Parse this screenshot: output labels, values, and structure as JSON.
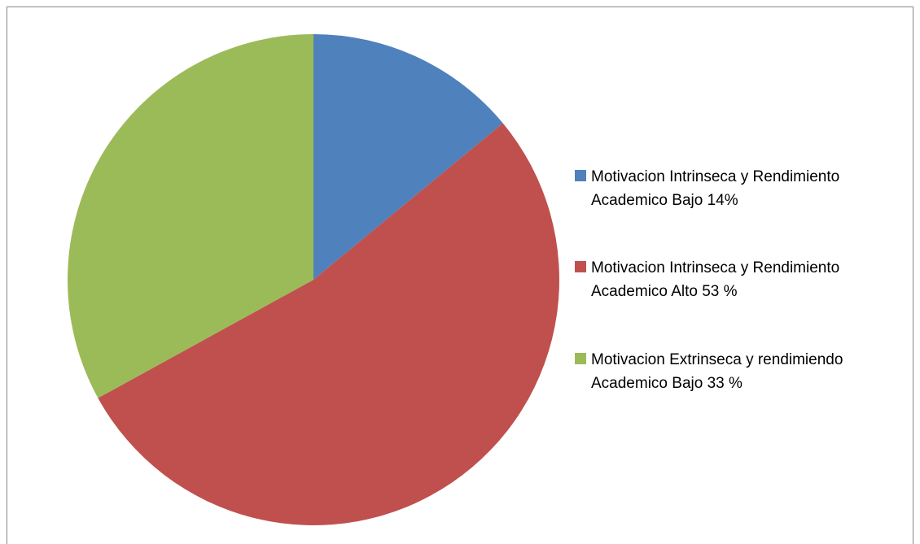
{
  "chart_data": {
    "type": "pie",
    "categories": [
      "Motivacion Intrinseca y Rendimiento Academico Bajo 14%",
      "Motivacion Intrinseca y Rendimiento Academico Alto 53 %",
      "Motivacion Extrinseca y rendimiendo Academico Bajo 33 %"
    ],
    "values": [
      14,
      53,
      33
    ],
    "colors": [
      "#4f81bd",
      "#c0504d",
      "#9bbb59"
    ],
    "legend": "right"
  }
}
